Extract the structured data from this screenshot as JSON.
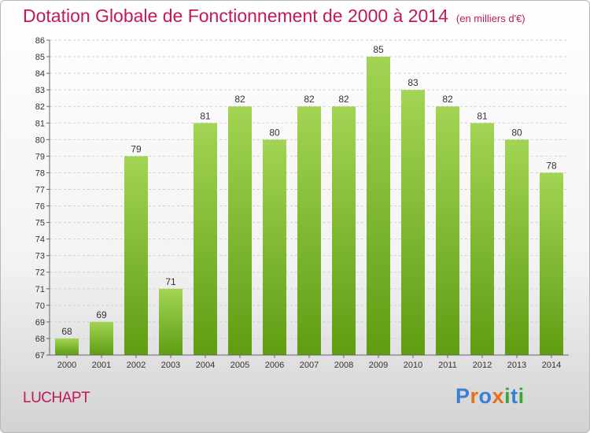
{
  "header": {
    "title": "Dotation Globale de Fonctionnement de 2000 à 2014",
    "subtitle": "(en milliers d'€)"
  },
  "footer": {
    "commune": "LUCHAPT",
    "logo": [
      "P",
      "r",
      "o",
      "x",
      "i",
      "t",
      "i"
    ]
  },
  "chart_data": {
    "type": "bar",
    "title": "Dotation Globale de Fonctionnement de 2000 à 2014",
    "subtitle": "(en milliers d'€)",
    "categories": [
      "2000",
      "2001",
      "2002",
      "2003",
      "2004",
      "2005",
      "2006",
      "2007",
      "2008",
      "2009",
      "2010",
      "2011",
      "2012",
      "2013",
      "2014"
    ],
    "values": [
      68,
      69,
      79,
      71,
      81,
      82,
      80,
      82,
      82,
      85,
      83,
      82,
      81,
      80,
      78
    ],
    "ylim": [
      67,
      86
    ],
    "yticks": [
      67,
      68,
      69,
      70,
      71,
      72,
      73,
      74,
      75,
      76,
      77,
      78,
      79,
      80,
      81,
      82,
      83,
      84,
      85,
      86
    ],
    "grid": true,
    "legend": "none",
    "colors": {
      "bar_top": "#a3d455",
      "bar_bottom": "#5e9d12",
      "grid": "#cfcfcf"
    }
  }
}
